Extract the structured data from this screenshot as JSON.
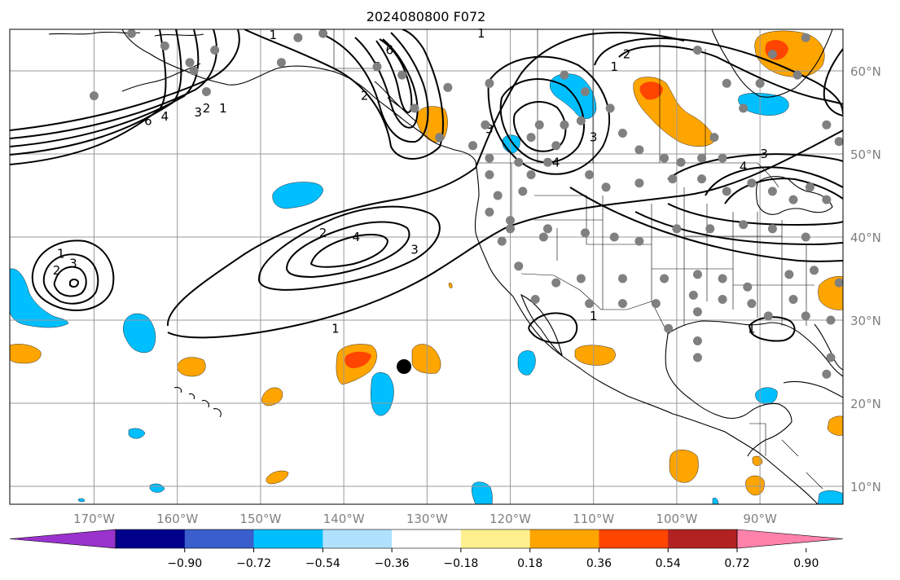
{
  "title": "2024080800 F072",
  "longitude_labels": [
    "170°W",
    "160°W",
    "150°W",
    "140°W",
    "130°W",
    "120°W",
    "110°W",
    "100°W",
    "90°W"
  ],
  "latitude_labels": [
    "60°N",
    "50°N",
    "40°N",
    "30°N",
    "20°N",
    "10°N"
  ],
  "colorbar": {
    "tick_labels": [
      "−0.90",
      "−0.72",
      "−0.54",
      "−0.36",
      "−0.18",
      "0.18",
      "0.36",
      "0.54",
      "0.72",
      "0.90"
    ],
    "colors": [
      "#9a32cd",
      "#00008b",
      "#3a5fcd",
      "#00bfff",
      "#b0e2ff",
      "#ffffff",
      "#fff08f",
      "#ffa500",
      "#ff4500",
      "#b22222",
      "#ff82ab"
    ]
  },
  "colors": {
    "station_marker": "#808080",
    "highlight_marker": "#000000",
    "grid": "#9a9a9a"
  },
  "contour_labels": [
    {
      "text": "6",
      "lon": -163.5,
      "lat": 53.5
    },
    {
      "text": "4",
      "lon": -161.5,
      "lat": 54.0
    },
    {
      "text": "3",
      "lon": -157.5,
      "lat": 54.5
    },
    {
      "text": "2",
      "lon": -156.5,
      "lat": 55.0
    },
    {
      "text": "1",
      "lon": -154.5,
      "lat": 55.0
    },
    {
      "text": "1",
      "lon": -148.5,
      "lat": 63.8
    },
    {
      "text": "6",
      "lon": -134.5,
      "lat": 62.0
    },
    {
      "text": "5",
      "lon": -136.0,
      "lat": 60.0
    },
    {
      "text": "2",
      "lon": -137.5,
      "lat": 56.5
    },
    {
      "text": "1",
      "lon": -123.5,
      "lat": 64.0
    },
    {
      "text": "2",
      "lon": -106.0,
      "lat": 61.5
    },
    {
      "text": "1",
      "lon": -107.5,
      "lat": 60.0
    },
    {
      "text": "3",
      "lon": -122.5,
      "lat": 52.5
    },
    {
      "text": "4",
      "lon": -114.5,
      "lat": 48.5
    },
    {
      "text": "3",
      "lon": -110.0,
      "lat": 51.5
    },
    {
      "text": "4",
      "lon": -92.0,
      "lat": 48.0
    },
    {
      "text": "3",
      "lon": -89.5,
      "lat": 49.5
    },
    {
      "text": "2",
      "lon": -142.5,
      "lat": 40.0
    },
    {
      "text": "4",
      "lon": -138.5,
      "lat": 39.5
    },
    {
      "text": "3",
      "lon": -131.5,
      "lat": 38.0
    },
    {
      "text": "1",
      "lon": -141.0,
      "lat": 28.5
    },
    {
      "text": "1",
      "lon": -174.0,
      "lat": 37.5
    },
    {
      "text": "2",
      "lon": -174.5,
      "lat": 35.5
    },
    {
      "text": "3",
      "lon": -172.5,
      "lat": 36.3
    },
    {
      "text": "1",
      "lon": -110.0,
      "lat": 30.0
    },
    {
      "text": "1",
      "lon": -91.0,
      "lat": 28.5
    }
  ]
}
